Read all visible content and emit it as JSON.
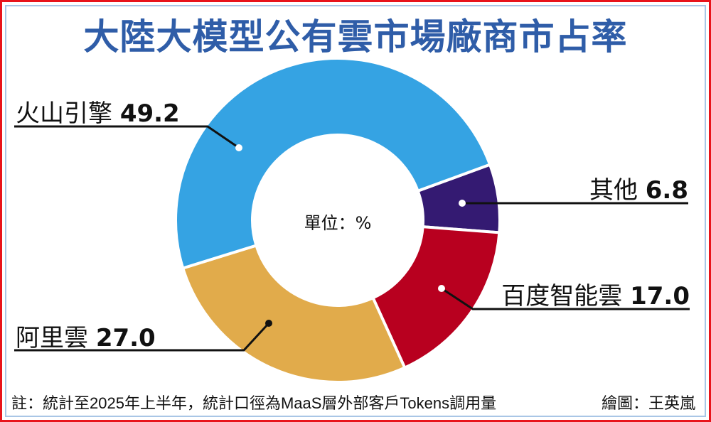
{
  "chart_data": {
    "type": "pie",
    "variant": "donut",
    "title": "大陸大模型公有雲市場廠商市占率",
    "unit_label": "單位：%",
    "slices": [
      {
        "label": "其他",
        "value": 6.8,
        "value_text": "6.8",
        "color": "#341a72"
      },
      {
        "label": "百度智能雲",
        "value": 17.0,
        "value_text": "17.0",
        "color": "#b8001f"
      },
      {
        "label": "阿里雲",
        "value": 27.0,
        "value_text": "27.0",
        "color": "#e1ab4b"
      },
      {
        "label": "火山引擎",
        "value": 49.2,
        "value_text": "49.2",
        "color": "#35a3e3"
      }
    ]
  },
  "footer": {
    "note": "註：統計至2025年上半年，統計口徑為MaaS層外部客戶Tokens調用量",
    "credit": "繪圖：王英嵐"
  }
}
